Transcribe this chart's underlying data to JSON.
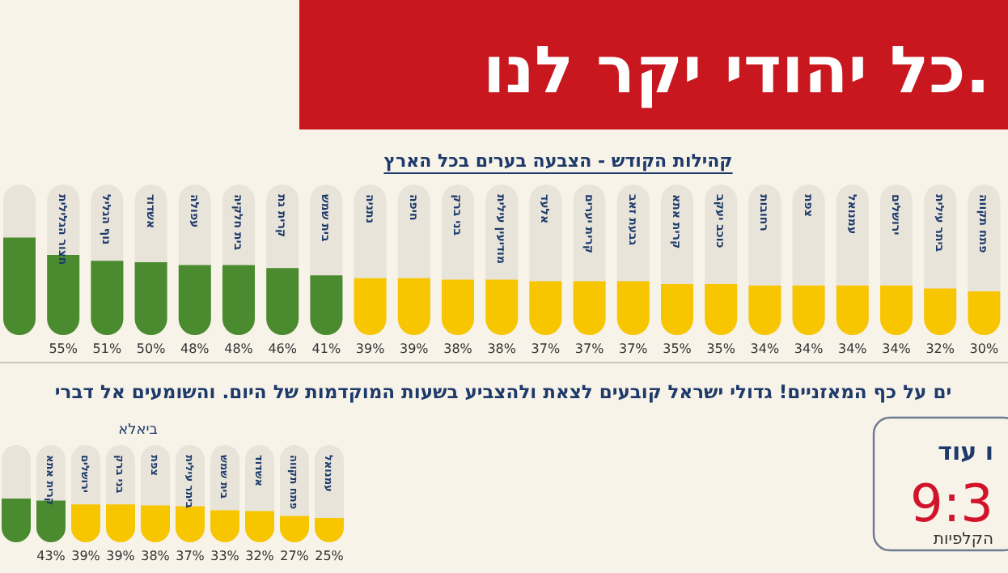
{
  "chart_data": [
    {
      "type": "other",
      "title": "כל יהודי יקר לנו."
    },
    {
      "type": "bar",
      "title": "קהילות הקודש - הצבעה בערים בכל הארץ",
      "categories": [
        null,
        "חצור הגלילית",
        "נוף הגליל",
        "אשדוד",
        "עפולה",
        "בית חלקיה",
        "קרית גת",
        "בית שמש",
        "נתניה",
        "חיפה",
        "בני ברק",
        "מודיעין עילית",
        "אלעד",
        "קרית יערים",
        "גבעת זאב",
        "קרית אתא",
        "כוכב יעקב",
        "רחובות",
        "צפת",
        "עמנואל",
        "ירושלים",
        "ביתר עילית",
        "פתח תקווה"
      ],
      "values": [
        67,
        55,
        51,
        50,
        48,
        48,
        46,
        41,
        39,
        39,
        38,
        38,
        37,
        37,
        37,
        35,
        35,
        34,
        34,
        34,
        34,
        32,
        30
      ],
      "value_labels": [
        null,
        "55%",
        "51%",
        "50%",
        "48%",
        "48%",
        "46%",
        "41%",
        "39%",
        "39%",
        "38%",
        "38%",
        "37%",
        "37%",
        "37%",
        "35%",
        "35%",
        "34%",
        "34%",
        "34%",
        "34%",
        "32%",
        "30%"
      ],
      "colors": [
        "#4b8b2f",
        "#4b8b2f",
        "#4b8b2f",
        "#4b8b2f",
        "#4b8b2f",
        "#4b8b2f",
        "#4b8b2f",
        "#4b8b2f",
        "#f7c600",
        "#f7c600",
        "#f7c600",
        "#f7c600",
        "#f7c600",
        "#f7c600",
        "#f7c600",
        "#f7c600",
        "#f7c600",
        "#f7c600",
        "#f7c600",
        "#f7c600",
        "#f7c600",
        "#f7c600",
        "#f7c600"
      ]
    },
    {
      "type": "bar",
      "title": "ים על כף המאזניים! גדולי ישראל קובעים לצאת ולהצביע בשעות המוקדמות של היום. והשומעים אל דברי",
      "subtitle": "ביאלא",
      "categories": [
        null,
        "קרית אתא",
        "ירושלים",
        "בני ברק",
        "צפת",
        "ביתר עילית",
        "בית שמש",
        "אשדוד",
        "פתח תקווה",
        "עמנואל"
      ],
      "values": [
        45,
        43,
        39,
        39,
        38,
        37,
        33,
        32,
        27,
        25
      ],
      "value_labels": [
        null,
        "43%",
        "39%",
        "39%",
        "38%",
        "37%",
        "33%",
        "32%",
        "27%",
        "25%"
      ],
      "colors": [
        "#4b8b2f",
        "#4b8b2f",
        "#f7c600",
        "#f7c600",
        "#f7c600",
        "#f7c600",
        "#f7c600",
        "#f7c600",
        "#f7c600",
        "#f7c600"
      ]
    },
    {
      "type": "other",
      "annotations": [
        "ו עוד",
        "9:3",
        "הקלפיות"
      ]
    }
  ]
}
